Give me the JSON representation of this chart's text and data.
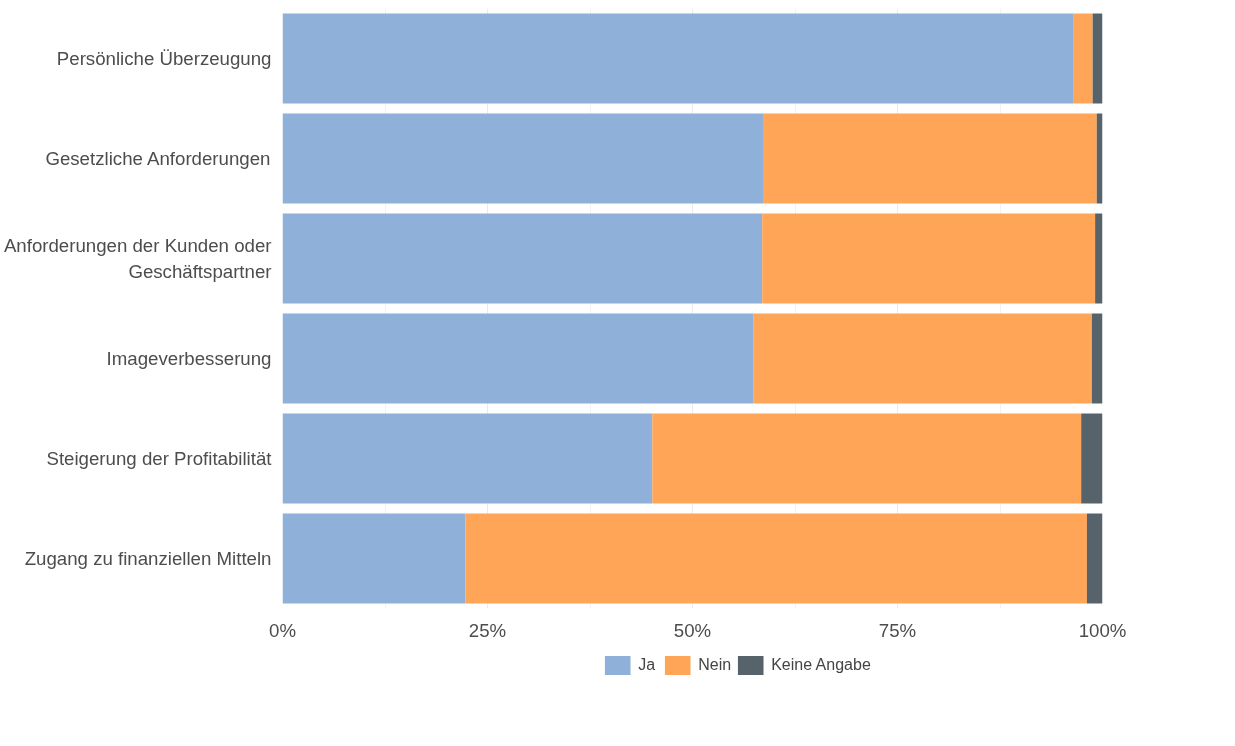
{
  "chart_data": {
    "type": "bar",
    "orientation": "horizontal",
    "stacked": true,
    "categories": [
      "Persönliche Überzeugung",
      "Gesetzliche Anforderungen",
      "Anforderungen der Kunden oder Geschäftspartner",
      "Imageverbesserung",
      "Steigerung der Profitabilität",
      "Zugang zu finanziellen Mitteln"
    ],
    "series": [
      {
        "name": "Ja",
        "color": "#8eb0d9",
        "values": [
          96.5,
          58.6,
          58.5,
          57.4,
          45.1,
          22.3
        ]
      },
      {
        "name": "Nein",
        "color": "#fea557",
        "values": [
          2.3,
          40.7,
          40.6,
          41.3,
          52.3,
          75.8
        ]
      },
      {
        "name": "Keine Angabe",
        "color": "#56636b",
        "values": [
          1.2,
          0.7,
          0.9,
          1.3,
          2.6,
          1.9
        ]
      }
    ],
    "xlim": [
      0,
      100
    ],
    "xticks": [
      {
        "value": 0,
        "label": "0%"
      },
      {
        "value": 25,
        "label": "25%"
      },
      {
        "value": 50,
        "label": "50%"
      },
      {
        "value": 75,
        "label": "75%"
      },
      {
        "value": 100,
        "label": "100%"
      }
    ],
    "grid": "x",
    "legend": "bottom"
  }
}
